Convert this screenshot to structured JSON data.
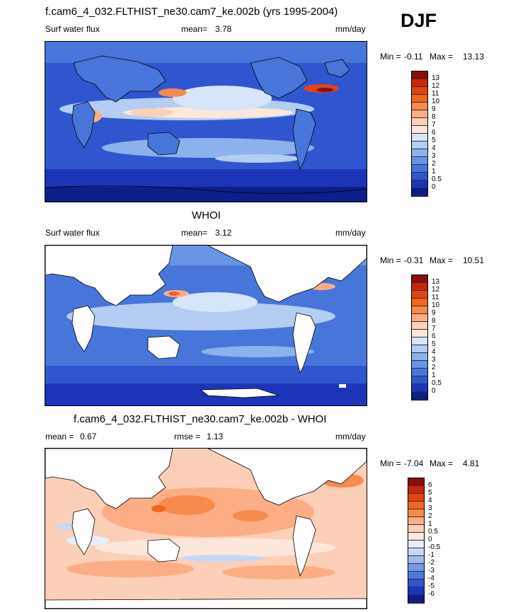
{
  "season": "DJF",
  "panels": [
    {
      "title": "f.cam6_4_032.FLTHIST_ne30.cam7_ke.002b (yrs 1995-2004)",
      "left_label": "Surf water flux",
      "stat1": "mean=",
      "stat1_value": "3.78",
      "units": "mm/day",
      "min_label": "Min =",
      "min_value": "-0.11",
      "max_label": "Max =",
      "max_value": "13.13",
      "scale": "abs",
      "colorbar": {
        "labels": [
          "13",
          "12",
          "11",
          "10",
          "9",
          "8",
          "7",
          "6",
          "5",
          "4",
          "3",
          "2",
          "1",
          "0.5",
          "0"
        ],
        "colors": [
          "#8b0d0d",
          "#c9260e",
          "#e2440f",
          "#f0651f",
          "#f78a4d",
          "#fbae85",
          "#fcd0b8",
          "#fde7da",
          "#d7e5f9",
          "#b3cdf3",
          "#8bb2ec",
          "#6794e4",
          "#4775da",
          "#2f56cf",
          "#1c35b8",
          "#0c1e8a"
        ]
      }
    },
    {
      "title": "WHOI",
      "left_label": "Surf water flux",
      "stat1": "mean=",
      "stat1_value": "3.12",
      "units": "mm/day",
      "min_label": "Min =",
      "min_value": "-0.31",
      "max_label": "Max =",
      "max_value": "10.51",
      "scale": "abs",
      "colorbar": {
        "labels": [
          "13",
          "12",
          "11",
          "10",
          "9",
          "8",
          "7",
          "6",
          "5",
          "4",
          "3",
          "2",
          "1",
          "0.5",
          "0"
        ],
        "colors": [
          "#8b0d0d",
          "#c9260e",
          "#e2440f",
          "#f0651f",
          "#f78a4d",
          "#fbae85",
          "#fcd0b8",
          "#fde7da",
          "#d7e5f9",
          "#b3cdf3",
          "#8bb2ec",
          "#6794e4",
          "#4775da",
          "#2f56cf",
          "#1c35b8",
          "#0c1e8a"
        ]
      }
    },
    {
      "title": "f.cam6_4_032.FLTHIST_ne30.cam7_ke.002b - WHOI",
      "left_label": "mean =",
      "left_value": "0.67",
      "stat1": "rmse =",
      "stat1_value": "1.13",
      "units": "mm/day",
      "min_label": "Min =",
      "min_value": "-7.04",
      "max_label": "Max =",
      "max_value": "4.81",
      "scale": "diff",
      "colorbar": {
        "labels": [
          "6",
          "5",
          "4",
          "3",
          "2",
          "1",
          "0.5",
          "0",
          "-0.5",
          "-1",
          "-2",
          "-3",
          "-4",
          "-5",
          "-6"
        ],
        "colors": [
          "#8b0d0d",
          "#c9260e",
          "#e2440f",
          "#f0651f",
          "#f78a4d",
          "#fbae85",
          "#fcd0b8",
          "#fde7da",
          "#e6eefb",
          "#c6d8f5",
          "#9dbcee",
          "#7499e6",
          "#4e77dc",
          "#2f53cf",
          "#1c35b8",
          "#0c1e8a"
        ]
      }
    }
  ]
}
